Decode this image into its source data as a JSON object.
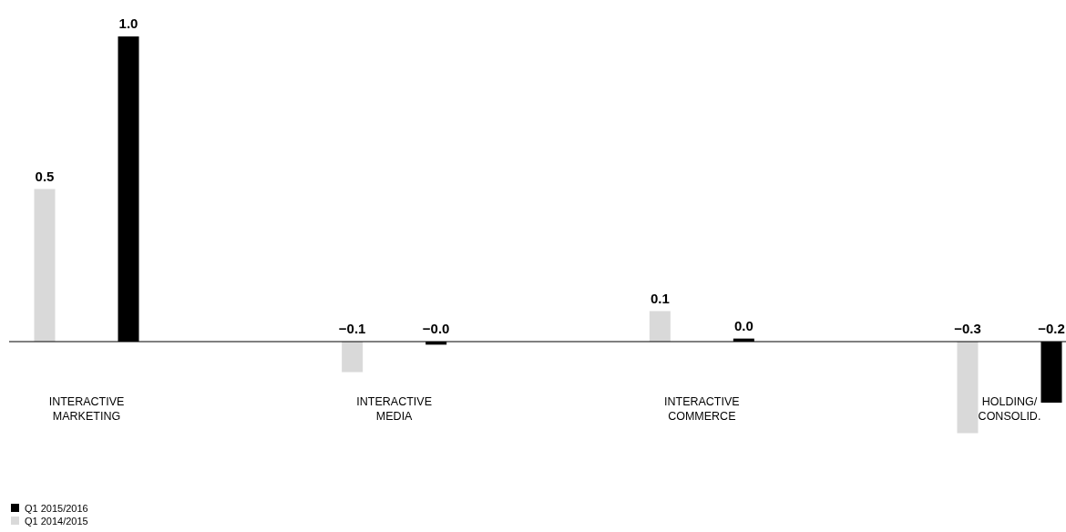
{
  "chart_data": {
    "type": "bar",
    "categories": [
      "INTERACTIVE\nMARKETING",
      "INTERACTIVE\nMEDIA",
      "INTERACTIVE\nCOMMERCE",
      "HOLDING/\nCONSOLID."
    ],
    "series": [
      {
        "name": "Q1 2014/2015",
        "color": "#d9d9d9",
        "values": [
          0.5,
          -0.1,
          0.1,
          -0.3
        ],
        "value_labels": [
          "0.5",
          "−0.1",
          "0.1",
          "−0.3"
        ]
      },
      {
        "name": "Q1 2015/2016",
        "color": "#000000",
        "values": [
          1.0,
          -0.01,
          0.01,
          -0.2
        ],
        "value_labels": [
          "1.0",
          "−0.0",
          "0.0",
          "−0.2"
        ]
      }
    ],
    "legend": "bottom left"
  }
}
